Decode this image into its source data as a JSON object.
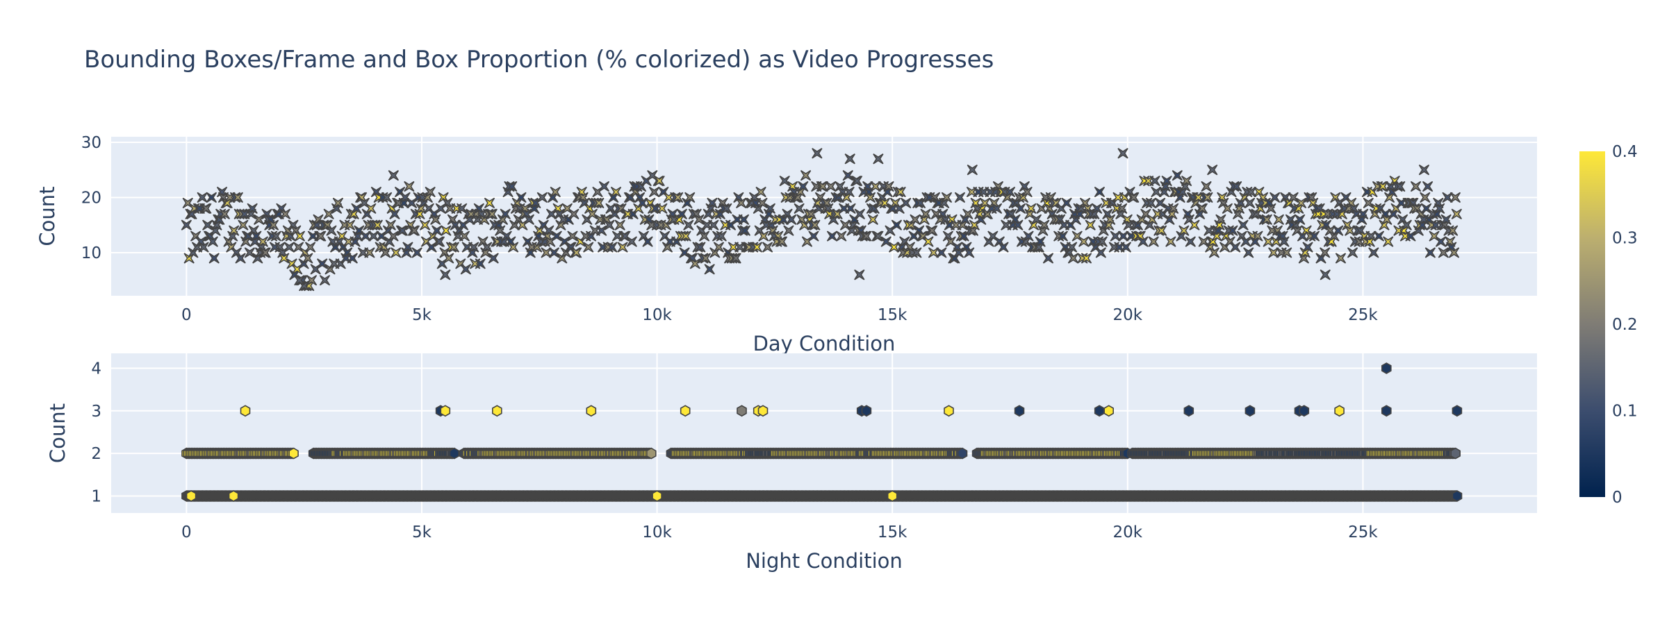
{
  "chart_data": {
    "title": "Bounding Boxes/Frame and Box Proportion (% colorized) as Video Progresses",
    "type": "scatter",
    "colorscale": {
      "name": "cividis",
      "colors": [
        "#00224e",
        "#3c4d6e",
        "#7f7c75",
        "#bcaf6f",
        "#fee838"
      ],
      "range": [
        0,
        0.4
      ],
      "tick_values": [
        0,
        0.1,
        0.2,
        0.3,
        0.4
      ],
      "tick_labels": [
        "0",
        "0.1",
        "0.2",
        "0.3",
        "0.4"
      ]
    },
    "plot_bg": "#e5ecf6",
    "grid": true,
    "subplots": [
      {
        "xlabel": "Day Condition",
        "ylabel": "Count",
        "xlim": [
          -1600,
          28700
        ],
        "ylim": [
          2.2,
          31
        ],
        "x_tick_values": [
          0,
          5000,
          10000,
          15000,
          20000,
          25000
        ],
        "x_tick_labels": [
          "0",
          "5k",
          "10k",
          "15k",
          "20k",
          "25k"
        ],
        "y_tick_values": [
          10,
          20,
          30
        ],
        "y_tick_labels": [
          "10",
          "20",
          "30"
        ],
        "marker": "x-thin-star",
        "x_range": [
          0,
          27000
        ],
        "count_range": [
          4,
          28
        ],
        "trend": [
          {
            "x": 0,
            "y": 13
          },
          {
            "x": 1000,
            "y": 16
          },
          {
            "x": 2000,
            "y": 12
          },
          {
            "x": 2500,
            "y": 8
          },
          {
            "x": 3500,
            "y": 15
          },
          {
            "x": 5000,
            "y": 16
          },
          {
            "x": 6000,
            "y": 12
          },
          {
            "x": 7000,
            "y": 17
          },
          {
            "x": 8000,
            "y": 15
          },
          {
            "x": 9000,
            "y": 16
          },
          {
            "x": 10000,
            "y": 18
          },
          {
            "x": 11000,
            "y": 13
          },
          {
            "x": 12000,
            "y": 15
          },
          {
            "x": 13000,
            "y": 18
          },
          {
            "x": 14000,
            "y": 19
          },
          {
            "x": 15000,
            "y": 16
          },
          {
            "x": 16000,
            "y": 14
          },
          {
            "x": 17000,
            "y": 17
          },
          {
            "x": 18000,
            "y": 16
          },
          {
            "x": 19000,
            "y": 14
          },
          {
            "x": 20000,
            "y": 17
          },
          {
            "x": 21000,
            "y": 18
          },
          {
            "x": 22000,
            "y": 16
          },
          {
            "x": 23000,
            "y": 15
          },
          {
            "x": 24000,
            "y": 14
          },
          {
            "x": 25000,
            "y": 16
          },
          {
            "x": 26000,
            "y": 17
          },
          {
            "x": 27000,
            "y": 15
          }
        ],
        "highlights": [
          {
            "x": 2500,
            "y": 4
          },
          {
            "x": 2400,
            "y": 5
          },
          {
            "x": 13400,
            "y": 28
          },
          {
            "x": 19900,
            "y": 28
          },
          {
            "x": 14100,
            "y": 27
          },
          {
            "x": 14700,
            "y": 27
          },
          {
            "x": 21800,
            "y": 25
          },
          {
            "x": 26300,
            "y": 25
          },
          {
            "x": 14300,
            "y": 6
          },
          {
            "x": 24200,
            "y": 6
          },
          {
            "x": 5500,
            "y": 6
          },
          {
            "x": 9900,
            "y": 24
          },
          {
            "x": 4400,
            "y": 24
          },
          {
            "x": 16700,
            "y": 25
          }
        ]
      },
      {
        "xlabel": "Night Condition",
        "ylabel": "Count",
        "xlim": [
          -1600,
          28700
        ],
        "ylim": [
          0.6,
          4.35
        ],
        "x_tick_values": [
          0,
          5000,
          10000,
          15000,
          20000,
          25000
        ],
        "x_tick_labels": [
          "0",
          "5k",
          "10k",
          "15k",
          "20k",
          "25k"
        ],
        "y_tick_values": [
          1,
          2,
          3,
          4
        ],
        "y_tick_labels": [
          "1",
          "2",
          "3",
          "4"
        ],
        "marker": "hexagon",
        "count1_range": [
          0,
          27000
        ],
        "count2_segments": [
          [
            0,
            2300
          ],
          [
            2700,
            5700
          ],
          [
            5900,
            9900
          ],
          [
            10300,
            16500
          ],
          [
            16800,
            20000
          ],
          [
            20100,
            27000
          ]
        ],
        "count2_yellow_segments": [
          [
            0,
            2300
          ],
          [
            3100,
            5400
          ],
          [
            6300,
            10000
          ],
          [
            10400,
            12000
          ],
          [
            12500,
            16200
          ],
          [
            17000,
            19900
          ],
          [
            21500,
            22800
          ],
          [
            25200,
            26700
          ]
        ],
        "count2_navy_segments": [
          [
            2700,
            3400
          ],
          [
            5200,
            5700
          ],
          [
            11800,
            12500
          ],
          [
            14300,
            14700
          ],
          [
            19900,
            21300
          ],
          [
            22800,
            25100
          ],
          [
            26800,
            27000
          ]
        ],
        "count3_points": [
          {
            "x": 1250,
            "v": 0.4
          },
          {
            "x": 5400,
            "v": 0.05
          },
          {
            "x": 5500,
            "v": 0.4
          },
          {
            "x": 6600,
            "v": 0.4
          },
          {
            "x": 8600,
            "v": 0.4
          },
          {
            "x": 10600,
            "v": 0.4
          },
          {
            "x": 11800,
            "v": 0.2
          },
          {
            "x": 12150,
            "v": 0.4
          },
          {
            "x": 12250,
            "v": 0.4
          },
          {
            "x": 14350,
            "v": 0.05
          },
          {
            "x": 14450,
            "v": 0.05
          },
          {
            "x": 16200,
            "v": 0.4
          },
          {
            "x": 17700,
            "v": 0.05
          },
          {
            "x": 19400,
            "v": 0.05
          },
          {
            "x": 19600,
            "v": 0.4
          },
          {
            "x": 21300,
            "v": 0.05
          },
          {
            "x": 22600,
            "v": 0.05
          },
          {
            "x": 23650,
            "v": 0.05
          },
          {
            "x": 23750,
            "v": 0.05
          },
          {
            "x": 24500,
            "v": 0.4
          },
          {
            "x": 25500,
            "v": 0.05
          },
          {
            "x": 27000,
            "v": 0.05
          }
        ],
        "count4_points": [
          {
            "x": 25500,
            "v": 0.05
          }
        ],
        "count1_highlights": [
          {
            "x": 100,
            "v": 0.4
          },
          {
            "x": 1000,
            "v": 0.4
          },
          {
            "x": 10000,
            "v": 0.4
          },
          {
            "x": 15000,
            "v": 0.4
          },
          {
            "x": 27000,
            "v": 0.05
          }
        ]
      }
    ]
  }
}
